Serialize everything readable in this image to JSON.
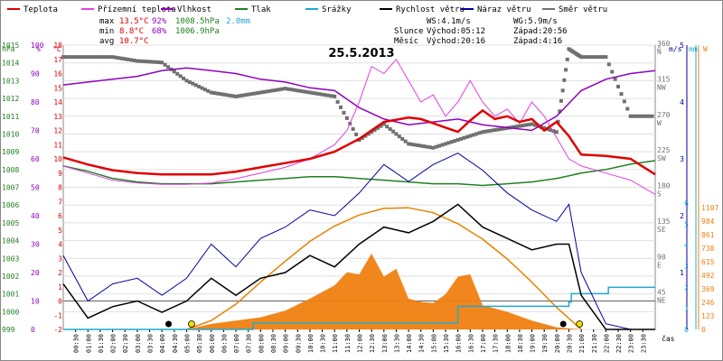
{
  "title": "25.5.2013",
  "legend": [
    {
      "label": "Teplota",
      "color": "#e00000"
    },
    {
      "label": "Přízemní teplota",
      "color": "#e040e0"
    },
    {
      "label": "Vlhkost",
      "color": "#9000c0"
    },
    {
      "label": "Tlak",
      "color": "#208020"
    },
    {
      "label": "Srážky",
      "color": "#20a8d0"
    },
    {
      "label": "Rychlost větru",
      "color": "#000000"
    },
    {
      "label": "Náraz větru",
      "color": "#0000a0"
    },
    {
      "label": "Směr větru",
      "color": "#707070"
    }
  ],
  "stats": {
    "max_label": "max",
    "max_temp": "13.5°C",
    "max_hum": "92%",
    "max_press": "1008.5hPa",
    "max_rain": "2.0mm",
    "min_label": "min",
    "min_temp": "8.8°C",
    "min_hum": "68%",
    "min_press": "1006.9hPa",
    "avg_label": "avg",
    "avg_temp": "10.7°C"
  },
  "wind_info": {
    "ws": "WS:4.1m/s",
    "wg": "WG:5.9m/s"
  },
  "sun_info": {
    "label": "Slunce",
    "rise": "Východ:05:12",
    "set": "Západ:20:56"
  },
  "moon_info": {
    "label": "Měsíc",
    "rise": "Východ:20:16",
    "set": "Západ:4:16"
  },
  "axes": {
    "hpa_unit": "hPa",
    "pct_unit": "%",
    "c_unit": "°C",
    "deg_unit": "°",
    "ms_unit": "m/s",
    "mm_unit": "mm",
    "w_unit": "W",
    "time_label": "čas",
    "hpa_ticks": [
      "1015",
      "1014",
      "1013",
      "1012",
      "1011",
      "1010",
      "1009",
      "1008",
      "1007",
      "1006",
      "1005",
      "1004",
      "1003",
      "1002",
      "1001",
      "1000",
      "999"
    ],
    "pct_ticks": [
      "100",
      "90",
      "80",
      "70",
      "60",
      "50",
      "40",
      "30",
      "20",
      "10",
      "0"
    ],
    "c_ticks": [
      "18",
      "17",
      "16",
      "15",
      "14",
      "13",
      "12",
      "11",
      "10",
      "9",
      "8",
      "7",
      "6",
      "5",
      "4",
      "3",
      "2",
      "1",
      "0",
      "-1",
      "-2"
    ],
    "dir_ticks": [
      {
        "deg": "360",
        "dir": "N"
      },
      {
        "deg": "315",
        "dir": "NW"
      },
      {
        "deg": "270",
        "dir": "W"
      },
      {
        "deg": "225",
        "dir": "SW"
      },
      {
        "deg": "180",
        "dir": "S"
      },
      {
        "deg": "135",
        "dir": "SE"
      },
      {
        "deg": "90",
        "dir": "E"
      },
      {
        "deg": "45",
        "dir": "NE"
      }
    ],
    "ms_ticks": [
      "5",
      "4",
      "3",
      "2",
      "1"
    ],
    "mm_ticks": [
      "6",
      "5",
      "4",
      "3",
      "2",
      "1",
      "0"
    ],
    "w_ticks": [
      "1107",
      "984",
      "861",
      "738",
      "615",
      "492",
      "369",
      "246",
      "123",
      "0"
    ],
    "time_ticks": [
      "00:30",
      "01:00",
      "01:30",
      "02:00",
      "02:30",
      "03:00",
      "03:30",
      "04:00",
      "04:30",
      "05:00",
      "05:30",
      "06:00",
      "06:30",
      "07:00",
      "07:30",
      "08:00",
      "08:30",
      "09:00",
      "09:30",
      "10:00",
      "10:30",
      "11:00",
      "11:30",
      "12:00",
      "12:30",
      "13:00",
      "13:30",
      "14:00",
      "14:30",
      "15:00",
      "15:30",
      "16:00",
      "16:30",
      "17:00",
      "17:30",
      "18:00",
      "18:30",
      "19:00",
      "19:30",
      "20:00",
      "20:30",
      "21:00",
      "21:30",
      "22:00",
      "22:30",
      "23:00",
      "23:30"
    ]
  },
  "chart_data": {
    "type": "line",
    "title": "25.5.2013",
    "x_unit": "hour",
    "xlim": [
      0,
      24
    ],
    "axis_ranges": {
      "pressure_hPa": [
        999,
        1015
      ],
      "humidity_pct": [
        0,
        100
      ],
      "temperature_C": [
        -2,
        18
      ],
      "wind_direction_deg": [
        0,
        360
      ],
      "wind_speed_ms": [
        0,
        5
      ],
      "precip_mm": [
        0,
        6
      ],
      "solar_W": [
        0,
        1107
      ]
    },
    "series": [
      {
        "name": "Teplota",
        "unit": "°C",
        "color": "#e00000",
        "x": [
          0,
          1,
          2,
          3,
          4,
          5,
          6,
          7,
          8,
          9,
          10,
          11,
          12,
          13,
          14,
          14.5,
          15,
          15.5,
          16,
          16.5,
          17,
          17.5,
          18,
          18.5,
          19,
          19.5,
          20,
          20.5,
          21,
          22,
          23,
          24
        ],
        "y": [
          10.1,
          9.6,
          9.2,
          9.0,
          8.9,
          8.9,
          8.9,
          9.1,
          9.4,
          9.7,
          10.0,
          10.5,
          11.4,
          12.6,
          12.9,
          12.8,
          12.5,
          12.2,
          11.9,
          12.7,
          13.4,
          12.8,
          13.0,
          12.6,
          12.8,
          12.0,
          12.6,
          11.6,
          10.3,
          10.2,
          10.0,
          8.9
        ]
      },
      {
        "name": "Přízemní teplota",
        "unit": "°C",
        "color": "#e040e0",
        "x": [
          0,
          1,
          2,
          3,
          4,
          5,
          6,
          7,
          8,
          9,
          10,
          11,
          11.5,
          12,
          12.5,
          13,
          13.5,
          14,
          14.5,
          15,
          15.5,
          16,
          16.5,
          17,
          17.5,
          18,
          18.5,
          19,
          19.5,
          20,
          20.5,
          21,
          22,
          23,
          24
        ],
        "y": [
          9.5,
          9.0,
          8.5,
          8.3,
          8.2,
          8.2,
          8.3,
          8.6,
          9.0,
          9.4,
          10.0,
          11.0,
          12.0,
          14.0,
          16.5,
          16.0,
          17.0,
          15.5,
          14.0,
          14.5,
          13.0,
          14.0,
          15.5,
          14.0,
          13.0,
          13.5,
          12.5,
          14.0,
          13.0,
          11.5,
          10.0,
          9.5,
          9.0,
          8.5,
          7.5
        ]
      },
      {
        "name": "Vlhkost",
        "unit": "%",
        "color": "#9000c0",
        "x": [
          0,
          1,
          2,
          3,
          4,
          5,
          6,
          7,
          8,
          9,
          10,
          11,
          12,
          13,
          14,
          15,
          16,
          17,
          18,
          19,
          20,
          21,
          22,
          23,
          24
        ],
        "y": [
          86,
          87,
          88,
          89,
          91,
          92,
          91,
          90,
          88,
          87,
          85,
          84,
          78,
          74,
          72,
          73,
          74,
          72,
          71,
          70,
          75,
          84,
          88,
          90,
          91
        ]
      },
      {
        "name": "Tlak",
        "unit": "hPa",
        "color": "#208020",
        "x": [
          0,
          1,
          2,
          3,
          4,
          5,
          6,
          7,
          8,
          9,
          10,
          11,
          12,
          13,
          14,
          15,
          16,
          17,
          18,
          19,
          20,
          21,
          22,
          23,
          24
        ],
        "y": [
          1008.2,
          1007.9,
          1007.5,
          1007.3,
          1007.2,
          1007.2,
          1007.2,
          1007.3,
          1007.4,
          1007.5,
          1007.6,
          1007.6,
          1007.5,
          1007.4,
          1007.3,
          1007.2,
          1007.2,
          1007.1,
          1007.2,
          1007.3,
          1007.5,
          1007.8,
          1008.0,
          1008.3,
          1008.5
        ]
      },
      {
        "name": "Srážky",
        "unit": "mm",
        "color": "#20a8d0",
        "x": [
          0,
          7.6,
          7.7,
          9,
          13.5,
          16,
          18,
          20,
          20.5,
          20.6,
          21.5,
          22,
          22.1,
          24
        ],
        "y": [
          0,
          0,
          0.3,
          0.3,
          0.3,
          1.1,
          1.1,
          1.1,
          1.3,
          1.7,
          1.7,
          1.7,
          2.0,
          2.0
        ]
      },
      {
        "name": "Směr větru",
        "unit": "°",
        "color": "#707070",
        "x": [
          0,
          1,
          2,
          3,
          4,
          5,
          6,
          7,
          8,
          9,
          10,
          11,
          12,
          13,
          14,
          15,
          16,
          17,
          18,
          19,
          20,
          20.5,
          21,
          22,
          23,
          24
        ],
        "y": [
          345,
          345,
          345,
          340,
          338,
          315,
          300,
          295,
          300,
          305,
          300,
          295,
          240,
          260,
          235,
          230,
          240,
          250,
          255,
          260,
          250,
          355,
          345,
          345,
          270,
          270
        ]
      },
      {
        "name": "Rychlost větru",
        "unit": "m/s",
        "color": "#000000",
        "x": [
          0,
          1,
          2,
          3,
          4,
          5,
          6,
          7,
          8,
          9,
          10,
          11,
          12,
          13,
          14,
          15,
          16,
          17,
          18,
          19,
          20,
          20.5,
          21,
          22,
          23,
          24
        ],
        "y": [
          0.8,
          0.2,
          0.4,
          0.5,
          0.3,
          0.5,
          0.9,
          0.6,
          0.9,
          1.0,
          1.3,
          1.1,
          1.5,
          1.8,
          1.7,
          1.9,
          2.2,
          1.8,
          1.6,
          1.4,
          1.5,
          1.5,
          0.6,
          0.0,
          0.0,
          0.0
        ]
      },
      {
        "name": "Náraz větru",
        "unit": "m/s",
        "color": "#0000a0",
        "x": [
          0,
          1,
          2,
          3,
          4,
          5,
          6,
          7,
          8,
          9,
          10,
          11,
          12,
          13,
          14,
          15,
          16,
          17,
          18,
          19,
          20,
          20.5,
          21,
          22,
          23,
          24
        ],
        "y": [
          1.3,
          0.5,
          0.8,
          0.9,
          0.6,
          0.9,
          1.5,
          1.1,
          1.6,
          1.8,
          2.1,
          2.0,
          2.4,
          2.9,
          2.6,
          2.9,
          3.1,
          2.8,
          2.4,
          2.1,
          1.9,
          2.2,
          1.0,
          0.1,
          0.0,
          0.0
        ]
      },
      {
        "name": "Sluneční záření",
        "unit": "W",
        "color": "#f08010",
        "x": [
          5,
          6,
          7,
          8,
          9,
          10,
          11,
          11.5,
          12,
          12.5,
          13,
          13.5,
          14,
          14.5,
          15,
          15.5,
          16,
          16.5,
          17,
          17.5,
          18,
          19,
          20,
          21
        ],
        "y": [
          0,
          50,
          80,
          110,
          170,
          280,
          400,
          520,
          500,
          690,
          480,
          550,
          280,
          250,
          240,
          320,
          480,
          500,
          220,
          190,
          160,
          80,
          20,
          0
        ]
      },
      {
        "name": "Teoretické záření",
        "unit": "W",
        "color": "#e88000",
        "x": [
          5,
          6,
          7,
          8,
          9,
          10,
          11,
          12,
          13,
          14,
          15,
          16,
          17,
          18,
          19,
          20,
          21
        ],
        "y": [
          0,
          80,
          230,
          430,
          620,
          800,
          940,
          1040,
          1100,
          1105,
          1060,
          960,
          820,
          640,
          430,
          200,
          0
        ]
      }
    ]
  }
}
